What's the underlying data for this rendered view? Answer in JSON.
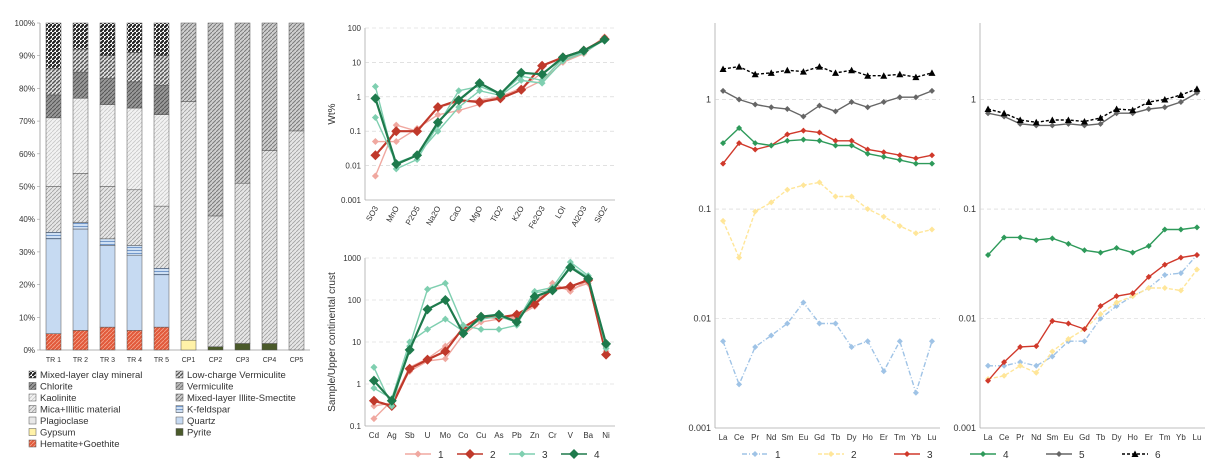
{
  "colors": {
    "hematite": "#e25a3b",
    "pyrite": "#4a5a2a",
    "gypsum": "#fff2a8",
    "quartz": "#c6daf2",
    "plagioclase": "#d8d8d8",
    "kfeldspar": "#9bbbe0",
    "mica": "#bdbdbd",
    "kaolinite": "#dcdcdc",
    "chlorite": "#6f6f6f",
    "mixedclay": "#222222",
    "lowcharge": "#555555",
    "vermiculite": "#888888",
    "mixedIS": "#aaaaaa",
    "s1": "#f0a8a0",
    "s2": "#c0392b",
    "s3": "#7fcfb0",
    "s4": "#1e7a4c",
    "r1": "#9fc3e6",
    "r2": "#ffe699",
    "r3": "#d0392b",
    "r4": "#2e9a5a",
    "r5": "#666666",
    "r6": "#000000"
  },
  "chart_data": [
    {
      "type": "stacked_bar",
      "yticks": [
        "0%",
        "10%",
        "20%",
        "30%",
        "40%",
        "50%",
        "60%",
        "70%",
        "80%",
        "90%",
        "100%"
      ],
      "categories": [
        "TR 1",
        "TR 2",
        "TR 3",
        "TR 4",
        "TR 5",
        "CP1",
        "CP2",
        "CP3",
        "CP4",
        "CP5"
      ],
      "series": [
        {
          "name": "Hematite+Goethite",
          "key": "hematite",
          "values": [
            5,
            6,
            7,
            6,
            7,
            0,
            0,
            0,
            0,
            0
          ]
        },
        {
          "name": "Pyrite",
          "key": "pyrite",
          "values": [
            0,
            0,
            0,
            0,
            0,
            0,
            1,
            2,
            2,
            0
          ]
        },
        {
          "name": "Gypsum",
          "key": "gypsum",
          "values": [
            0,
            0,
            0,
            0,
            0,
            3,
            0,
            0,
            0,
            0
          ]
        },
        {
          "name": "Quartz",
          "key": "quartz",
          "values": [
            29,
            31,
            25,
            23,
            16,
            0,
            0,
            0,
            0,
            0
          ]
        },
        {
          "name": "K-feldspar",
          "key": "kfeldspar",
          "values": [
            2,
            2,
            2,
            3,
            2,
            0,
            0,
            0,
            0,
            0
          ]
        },
        {
          "name": "Plagioclase",
          "key": "plagioclase",
          "values": [
            0,
            0,
            0,
            0,
            0,
            0,
            0,
            0,
            0,
            0
          ]
        },
        {
          "name": "Mica+Illitic material",
          "key": "mica",
          "values": [
            14,
            15,
            16,
            17,
            19,
            73,
            40,
            49,
            59,
            67
          ]
        },
        {
          "name": "Kaolinite",
          "key": "kaolinite",
          "values": [
            21,
            23,
            25,
            25,
            28,
            0,
            0,
            0,
            0,
            0
          ]
        },
        {
          "name": "Chlorite",
          "key": "chlorite",
          "values": [
            7,
            8,
            8,
            8,
            9,
            0,
            0,
            0,
            0,
            0
          ]
        },
        {
          "name": "Mixed-layer Illite-Smectite",
          "key": "mixedIS",
          "values": [
            0,
            0,
            0,
            0,
            0,
            24,
            59,
            49,
            39,
            33
          ]
        },
        {
          "name": "Low-charge Vermiculite",
          "key": "lowcharge",
          "values": [
            8,
            7,
            7,
            9,
            9,
            0,
            0,
            0,
            0,
            0
          ]
        },
        {
          "name": "Mixed-layer clay mineral",
          "key": "mixedclay",
          "values": [
            14,
            8,
            10,
            9,
            10,
            0,
            0,
            0,
            0,
            0
          ]
        }
      ],
      "legend": [
        [
          "Mixed-layer clay mineral",
          "mixedclay"
        ],
        [
          "Low-charge Vermiculite",
          "lowcharge"
        ],
        [
          "Chlorite",
          "chlorite"
        ],
        [
          "Vermiculite",
          "vermiculite"
        ],
        [
          "Kaolinite",
          "kaolinite"
        ],
        [
          "Mixed-layer Illite-Smectite",
          "mixedIS"
        ],
        [
          "Mica+Illitic material",
          "mica"
        ],
        [
          "K-feldspar",
          "kfeldspar"
        ],
        [
          "Plagioclase",
          "plagioclase"
        ],
        [
          "Quartz",
          "quartz"
        ],
        [
          "Gypsum",
          "gypsum"
        ],
        [
          "Pyrite",
          "pyrite"
        ],
        [
          "Hematite+Goethite",
          "hematite"
        ]
      ]
    },
    {
      "type": "line",
      "ylabel": "Wt%",
      "yscale": "log",
      "ylim": [
        0.001,
        100
      ],
      "yticks": [
        "0.001",
        "0.01",
        "0.1",
        "1",
        "10",
        "100"
      ],
      "categories": [
        "SO3",
        "MnO",
        "P2O5",
        "Na2O",
        "CaO",
        "MgO",
        "TiO2",
        "K2O",
        "Fe2O3",
        "LOI",
        "Al2O3",
        "SiO2"
      ],
      "series": [
        {
          "name": "1",
          "key": "s1",
          "values": [
            0.005,
            0.15,
            0.1,
            0.5,
            0.7,
            0.8,
            1.0,
            1.8,
            5,
            12,
            20,
            55
          ]
        },
        {
          "name": "1",
          "key": "s1",
          "values": [
            0.05,
            0.05,
            0.12,
            0.3,
            0.4,
            0.6,
            1.1,
            1.5,
            3,
            10,
            18,
            50
          ]
        },
        {
          "name": "2",
          "key": "s2",
          "values": [
            0.02,
            0.1,
            0.1,
            0.5,
            0.8,
            0.7,
            0.9,
            1.6,
            8,
            14,
            22,
            48
          ]
        },
        {
          "name": "3",
          "key": "s3",
          "values": [
            2.0,
            0.008,
            0.015,
            0.15,
            1.5,
            2.0,
            1.2,
            4,
            3,
            13,
            20,
            47
          ]
        },
        {
          "name": "3",
          "key": "s3",
          "values": [
            0.25,
            0.012,
            0.02,
            0.1,
            0.5,
            1.5,
            1.1,
            3,
            2.5,
            11,
            19,
            46
          ]
        },
        {
          "name": "4",
          "key": "s4",
          "values": [
            0.9,
            0.011,
            0.02,
            0.18,
            0.8,
            2.5,
            1.2,
            5,
            4.5,
            14,
            22,
            46
          ]
        }
      ]
    },
    {
      "type": "line",
      "ylabel": "Sample/Upper continental crust",
      "yscale": "log",
      "ylim": [
        0.1,
        1000
      ],
      "yticks": [
        "0.1",
        "1",
        "10",
        "100",
        "1000"
      ],
      "categories": [
        "Cd",
        "Ag",
        "Sb",
        "U",
        "Mo",
        "Co",
        "Cu",
        "As",
        "Pb",
        "Zn",
        "Cr",
        "V",
        "Ba",
        "Ni"
      ],
      "legend": [
        "1",
        "2",
        "3",
        "4"
      ],
      "series": [
        {
          "name": "1",
          "key": "s1",
          "values": [
            0.15,
            0.4,
            2,
            3.5,
            4,
            15,
            30,
            35,
            40,
            70,
            250,
            160,
            300,
            5
          ]
        },
        {
          "name": "1",
          "key": "s1",
          "values": [
            0.3,
            0.35,
            2.5,
            4,
            8,
            20,
            40,
            40,
            35,
            90,
            200,
            180,
            250,
            6
          ]
        },
        {
          "name": "2",
          "key": "s2",
          "values": [
            0.4,
            0.3,
            2.3,
            3.8,
            6,
            22,
            40,
            38,
            45,
            80,
            180,
            210,
            300,
            5
          ]
        },
        {
          "name": "3",
          "key": "s3",
          "values": [
            2.5,
            0.3,
            8,
            180,
            250,
            25,
            20,
            20,
            25,
            150,
            170,
            650,
            350,
            7
          ]
        },
        {
          "name": "3",
          "key": "s3",
          "values": [
            0.8,
            0.45,
            10,
            20,
            35,
            18,
            35,
            40,
            30,
            160,
            200,
            800,
            380,
            8
          ]
        },
        {
          "name": "4",
          "key": "s4",
          "values": [
            1.2,
            0.4,
            6.5,
            60,
            100,
            16,
            40,
            45,
            30,
            120,
            170,
            600,
            320,
            9
          ]
        }
      ]
    },
    {
      "type": "line",
      "yscale": "log",
      "ylim": [
        0.001,
        5
      ],
      "yticks": [
        "0.001",
        "0.01",
        "0.1",
        "1"
      ],
      "categories": [
        "La",
        "Ce",
        "Pr",
        "Nd",
        "Sm",
        "Eu",
        "Gd",
        "Tb",
        "Dy",
        "Ho",
        "Er",
        "Tm",
        "Yb",
        "Lu"
      ],
      "series": [
        {
          "name": "1",
          "key": "r1",
          "values": [
            0.0062,
            0.0025,
            0.0055,
            0.007,
            0.009,
            0.014,
            0.009,
            0.009,
            0.0055,
            0.0062,
            0.0033,
            0.0062,
            0.0021,
            0.0062
          ]
        },
        {
          "name": "2",
          "key": "r2",
          "values": [
            0.078,
            0.036,
            0.095,
            0.115,
            0.15,
            0.165,
            0.175,
            0.13,
            0.13,
            0.1,
            0.085,
            0.07,
            0.06,
            0.065
          ]
        },
        {
          "name": "3",
          "key": "r3",
          "values": [
            0.26,
            0.4,
            0.35,
            0.38,
            0.48,
            0.52,
            0.5,
            0.42,
            0.42,
            0.35,
            0.33,
            0.31,
            0.29,
            0.31
          ]
        },
        {
          "name": "4",
          "key": "r4",
          "values": [
            0.4,
            0.55,
            0.4,
            0.38,
            0.42,
            0.43,
            0.42,
            0.38,
            0.38,
            0.32,
            0.3,
            0.28,
            0.26,
            0.26
          ]
        },
        {
          "name": "5",
          "key": "r5",
          "values": [
            1.2,
            1.0,
            0.9,
            0.85,
            0.82,
            0.7,
            0.88,
            0.78,
            0.95,
            0.85,
            0.95,
            1.05,
            1.05,
            1.2
          ]
        },
        {
          "name": "6",
          "key": "r6",
          "values": [
            1.9,
            2.0,
            1.7,
            1.75,
            1.85,
            1.8,
            2.0,
            1.75,
            1.85,
            1.65,
            1.65,
            1.7,
            1.6,
            1.75
          ]
        }
      ]
    },
    {
      "type": "line",
      "yscale": "log",
      "ylim": [
        0.001,
        5
      ],
      "yticks": [
        "0.001",
        "0.01",
        "0.1",
        "1"
      ],
      "categories": [
        "La",
        "Ce",
        "Pr",
        "Nd",
        "Sm",
        "Eu",
        "Gd",
        "Tb",
        "Dy",
        "Ho",
        "Er",
        "Tm",
        "Yb",
        "Lu"
      ],
      "legend": [
        "1",
        "2",
        "3",
        "4",
        "5",
        "6"
      ],
      "series": [
        {
          "name": "1",
          "key": "r1",
          "values": [
            0.0037,
            0.0037,
            0.004,
            0.0037,
            0.0045,
            0.0062,
            0.0062,
            0.01,
            0.013,
            0.016,
            0.019,
            0.025,
            0.026,
            0.038
          ]
        },
        {
          "name": "2",
          "key": "r2",
          "values": [
            0.0028,
            0.003,
            0.0037,
            0.0032,
            0.005,
            0.0065,
            0.008,
            0.011,
            0.014,
            0.016,
            0.019,
            0.019,
            0.018,
            0.028
          ]
        },
        {
          "name": "3",
          "key": "r3",
          "values": [
            0.0027,
            0.004,
            0.0055,
            0.0056,
            0.0095,
            0.009,
            0.008,
            0.013,
            0.016,
            0.017,
            0.024,
            0.031,
            0.036,
            0.038
          ]
        },
        {
          "name": "4",
          "key": "r4",
          "values": [
            0.038,
            0.055,
            0.055,
            0.052,
            0.054,
            0.048,
            0.042,
            0.04,
            0.044,
            0.04,
            0.046,
            0.065,
            0.065,
            0.068
          ]
        },
        {
          "name": "5",
          "key": "r5",
          "values": [
            0.75,
            0.7,
            0.6,
            0.58,
            0.58,
            0.6,
            0.58,
            0.6,
            0.75,
            0.75,
            0.82,
            0.85,
            0.95,
            1.15
          ]
        },
        {
          "name": "6",
          "key": "r6",
          "values": [
            0.82,
            0.75,
            0.65,
            0.62,
            0.65,
            0.65,
            0.63,
            0.68,
            0.82,
            0.8,
            0.95,
            1.0,
            1.1,
            1.25
          ]
        }
      ]
    }
  ]
}
